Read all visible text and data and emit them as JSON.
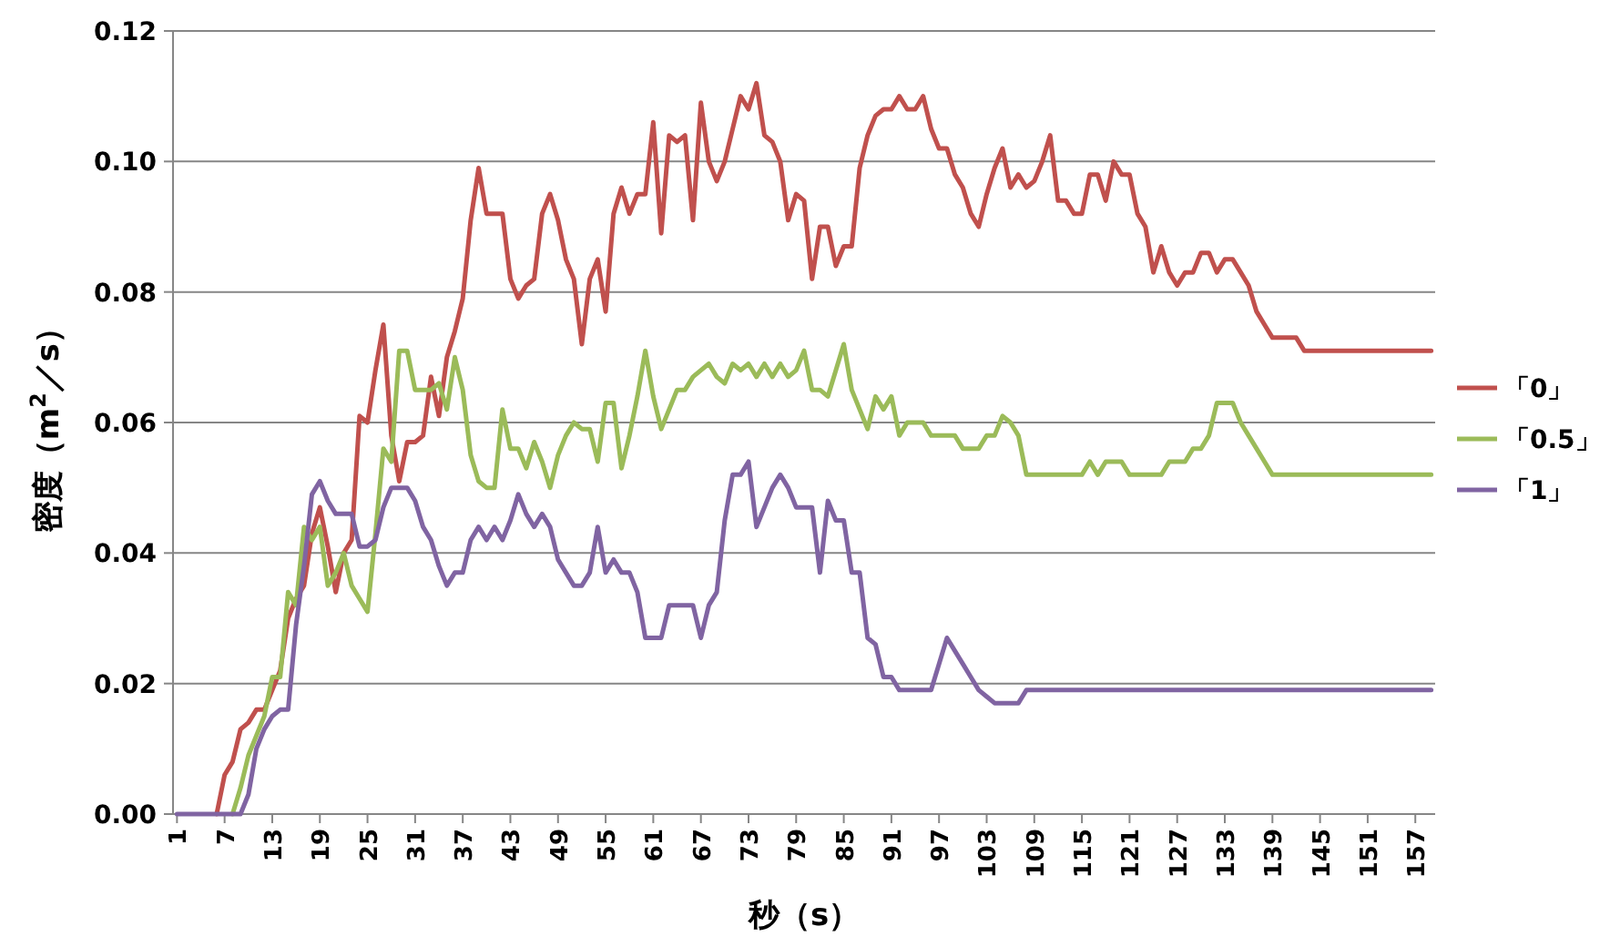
{
  "chart_data": {
    "type": "line",
    "xlabel": "秒（s）",
    "ylabel": "密度（m$^{2}$／s）",
    "x": [
      1,
      2,
      3,
      4,
      5,
      6,
      7,
      8,
      9,
      10,
      11,
      12,
      13,
      14,
      15,
      16,
      17,
      18,
      19,
      20,
      21,
      22,
      23,
      24,
      25,
      26,
      27,
      28,
      29,
      30,
      31,
      32,
      33,
      34,
      35,
      36,
      37,
      38,
      39,
      40,
      41,
      42,
      43,
      44,
      45,
      46,
      47,
      48,
      49,
      50,
      51,
      52,
      53,
      54,
      55,
      56,
      57,
      58,
      59,
      60,
      61,
      62,
      63,
      64,
      65,
      66,
      67,
      68,
      69,
      70,
      71,
      72,
      73,
      74,
      75,
      76,
      77,
      78,
      79,
      80,
      81,
      82,
      83,
      84,
      85,
      86,
      87,
      88,
      89,
      90,
      91,
      92,
      93,
      94,
      95,
      96,
      97,
      98,
      99,
      100,
      101,
      102,
      103,
      104,
      105,
      106,
      107,
      108,
      109,
      110,
      111,
      112,
      113,
      114,
      115,
      116,
      117,
      118,
      119,
      120,
      121,
      122,
      123,
      124,
      125,
      126,
      127,
      128,
      129,
      130,
      131,
      132,
      133,
      134,
      135,
      136,
      137,
      138,
      139,
      140,
      141,
      142,
      143,
      144,
      145,
      146,
      147,
      148,
      149,
      150,
      151,
      152,
      153,
      154,
      155,
      156,
      157,
      158,
      159
    ],
    "xlim": [
      0.5,
      159.5
    ],
    "xticks": [
      1,
      7,
      13,
      19,
      25,
      31,
      37,
      43,
      49,
      55,
      61,
      67,
      73,
      79,
      85,
      91,
      97,
      103,
      109,
      115,
      121,
      127,
      133,
      139,
      145,
      151,
      157
    ],
    "ylim": [
      0,
      0.12
    ],
    "yticks": [
      {
        "value": 0,
        "label": "0.00"
      },
      {
        "value": 0.02,
        "label": "0.02"
      },
      {
        "value": 0.04,
        "label": "0.04"
      },
      {
        "value": 0.06,
        "label": "0.06"
      },
      {
        "value": 0.08,
        "label": "0.08"
      },
      {
        "value": 0.1,
        "label": "0.10"
      },
      {
        "value": 0.12,
        "label": "0.12"
      }
    ],
    "grid": "y",
    "legend": "right",
    "marker": "none",
    "line_style": "solid",
    "series": [
      {
        "name": "「0」",
        "color": "#c0504d",
        "values": [
          null,
          null,
          null,
          null,
          null,
          0,
          0.006,
          0.008,
          0.013,
          0.014,
          0.016,
          0.016,
          0.019,
          0.022,
          0.03,
          0.033,
          0.035,
          0.043,
          0.047,
          0.041,
          0.034,
          0.04,
          0.042,
          0.061,
          0.06,
          0.068,
          0.075,
          0.058,
          0.051,
          0.057,
          0.057,
          0.058,
          0.067,
          0.061,
          0.07,
          0.074,
          0.079,
          0.091,
          0.099,
          0.092,
          0.092,
          0.092,
          0.082,
          0.079,
          0.081,
          0.082,
          0.092,
          0.095,
          0.091,
          0.085,
          0.082,
          0.072,
          0.082,
          0.085,
          0.077,
          0.092,
          0.096,
          0.092,
          0.095,
          0.095,
          0.106,
          0.089,
          0.104,
          0.103,
          0.104,
          0.091,
          0.109,
          0.1,
          0.097,
          0.1,
          0.105,
          0.11,
          0.108,
          0.112,
          0.104,
          0.103,
          0.1,
          0.091,
          0.095,
          0.094,
          0.082,
          0.09,
          0.09,
          0.084,
          0.087,
          0.087,
          0.099,
          0.104,
          0.107,
          0.108,
          0.108,
          0.11,
          0.108,
          0.108,
          0.11,
          0.105,
          0.102,
          0.102,
          0.098,
          0.096,
          0.092,
          0.09,
          0.095,
          0.099,
          0.102,
          0.096,
          0.098,
          0.096,
          0.097,
          0.1,
          0.104,
          0.094,
          0.094,
          0.092,
          0.092,
          0.098,
          0.098,
          0.094,
          0.1,
          0.098,
          0.098,
          0.092,
          0.09,
          0.083,
          0.087,
          0.083,
          0.081,
          0.083,
          0.083,
          0.086,
          0.086,
          0.083,
          0.085,
          0.085,
          0.083,
          0.081,
          0.077,
          0.075,
          0.073,
          0.073,
          0.073,
          0.073,
          0.071,
          0.071,
          0.071,
          0.071,
          0.071,
          0.071,
          0.071,
          0.071,
          0.071,
          0.071,
          0.071,
          0.071,
          0.071,
          0.071,
          0.071,
          0.071,
          0.071
        ]
      },
      {
        "name": "「0.5」",
        "color": "#9bbb59",
        "values": [
          null,
          null,
          null,
          null,
          null,
          null,
          null,
          0,
          0.004,
          0.009,
          0.012,
          0.015,
          0.021,
          0.021,
          0.034,
          0.032,
          0.044,
          0.042,
          0.044,
          0.035,
          0.037,
          0.04,
          0.035,
          0.033,
          0.031,
          0.043,
          0.056,
          0.054,
          0.071,
          0.071,
          0.065,
          0.065,
          0.065,
          0.066,
          0.062,
          0.07,
          0.065,
          0.055,
          0.051,
          0.05,
          0.05,
          0.062,
          0.056,
          0.056,
          0.053,
          0.057,
          0.054,
          0.05,
          0.055,
          0.058,
          0.06,
          0.059,
          0.059,
          0.054,
          0.063,
          0.063,
          0.053,
          0.058,
          0.064,
          0.071,
          0.064,
          0.059,
          0.062,
          0.065,
          0.065,
          0.067,
          0.068,
          0.069,
          0.067,
          0.066,
          0.069,
          0.068,
          0.069,
          0.067,
          0.069,
          0.067,
          0.069,
          0.067,
          0.068,
          0.071,
          0.065,
          0.065,
          0.064,
          0.068,
          0.072,
          0.065,
          0.062,
          0.059,
          0.064,
          0.062,
          0.064,
          0.058,
          0.06,
          0.06,
          0.06,
          0.058,
          0.058,
          0.058,
          0.058,
          0.056,
          0.056,
          0.056,
          0.058,
          0.058,
          0.061,
          0.06,
          0.058,
          0.052,
          0.052,
          0.052,
          0.052,
          0.052,
          0.052,
          0.052,
          0.052,
          0.054,
          0.052,
          0.054,
          0.054,
          0.054,
          0.052,
          0.052,
          0.052,
          0.052,
          0.052,
          0.054,
          0.054,
          0.054,
          0.056,
          0.056,
          0.058,
          0.063,
          0.063,
          0.063,
          0.06,
          0.058,
          0.056,
          0.054,
          0.052,
          0.052,
          0.052,
          0.052,
          0.052,
          0.052,
          0.052,
          0.052,
          0.052,
          0.052,
          0.052,
          0.052,
          0.052,
          0.052,
          0.052,
          0.052,
          0.052,
          0.052,
          0.052,
          0.052,
          0.052
        ]
      },
      {
        "name": "「1」",
        "color": "#8064a2",
        "values": [
          0,
          0,
          0,
          0,
          0,
          0,
          0,
          0,
          0,
          0.003,
          0.01,
          0.013,
          0.015,
          0.016,
          0.016,
          0.029,
          0.038,
          0.049,
          0.051,
          0.048,
          0.046,
          0.046,
          0.046,
          0.041,
          0.041,
          0.042,
          0.047,
          0.05,
          0.05,
          0.05,
          0.048,
          0.044,
          0.042,
          0.038,
          0.035,
          0.037,
          0.037,
          0.042,
          0.044,
          0.042,
          0.044,
          0.042,
          0.045,
          0.049,
          0.046,
          0.044,
          0.046,
          0.044,
          0.039,
          0.037,
          0.035,
          0.035,
          0.037,
          0.044,
          0.037,
          0.039,
          0.037,
          0.037,
          0.034,
          0.027,
          0.027,
          0.027,
          0.032,
          0.032,
          0.032,
          0.032,
          0.027,
          0.032,
          0.034,
          0.045,
          0.052,
          0.052,
          0.054,
          0.044,
          0.047,
          0.05,
          0.052,
          0.05,
          0.047,
          0.047,
          0.047,
          0.037,
          0.048,
          0.045,
          0.045,
          0.037,
          0.037,
          0.027,
          0.026,
          0.021,
          0.021,
          0.019,
          0.019,
          0.019,
          0.019,
          0.019,
          0.023,
          0.027,
          0.025,
          0.023,
          0.021,
          0.019,
          0.018,
          0.017,
          0.017,
          0.017,
          0.017,
          0.019,
          0.019,
          0.019,
          0.019,
          0.019,
          0.019,
          0.019,
          0.019,
          0.019,
          0.019,
          0.019,
          0.019,
          0.019,
          0.019,
          0.019,
          0.019,
          0.019,
          0.019,
          0.019,
          0.019,
          0.019,
          0.019,
          0.019,
          0.019,
          0.019,
          0.019,
          0.019,
          0.019,
          0.019,
          0.019,
          0.019,
          0.019,
          0.019,
          0.019,
          0.019,
          0.019,
          0.019,
          0.019,
          0.019,
          0.019,
          0.019,
          0.019,
          0.019,
          0.019,
          0.019,
          0.019,
          0.019,
          0.019,
          0.019,
          0.019,
          0.019,
          0.019
        ]
      }
    ]
  }
}
